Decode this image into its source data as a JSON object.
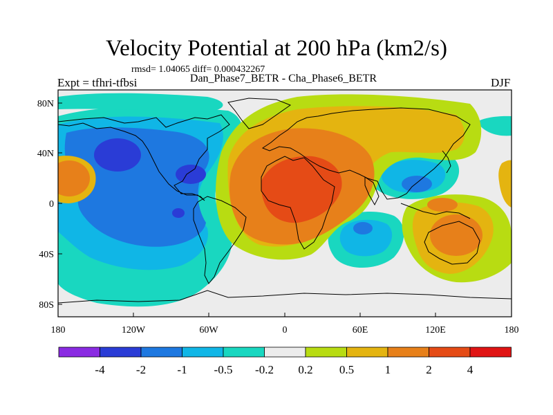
{
  "header": {
    "title": "Velocity Potential at 200 hPa (km2/s)",
    "stats": "rmsd= 1.04065 diff= 0.000432267",
    "subtitle": "Dan_Phase7_BETR - Cha_Phase6_BETR",
    "experiment": "Expt = tfhri-tfbsi",
    "season": "DJF"
  },
  "axes": {
    "lat_labels": [
      "80N",
      "40N",
      "0",
      "40S",
      "80S"
    ],
    "lon_labels": [
      "180",
      "120W",
      "60W",
      "0",
      "60E",
      "120E",
      "180"
    ]
  },
  "colorbar": {
    "levels": [
      "-4",
      "-2",
      "-1",
      "-0.5",
      "-0.2",
      "0.2",
      "0.5",
      "1",
      "2",
      "4"
    ],
    "colors": [
      "#8a2be2",
      "#2a3cd6",
      "#1e78e0",
      "#10b6e6",
      "#19d7c0",
      "#ececec",
      "#b8dc12",
      "#e4b410",
      "#e7801a",
      "#e54b16",
      "#e01414"
    ]
  },
  "map_colors": {
    "background": "#ececec",
    "neg_weak": "#19d7c0",
    "neg_mod": "#10b6e6",
    "neg_strong": "#1e78e0",
    "neg_vstrong": "#2a3cd6",
    "pos_weak": "#b8dc12",
    "pos_mod": "#e4b410",
    "pos_strong": "#e7801a",
    "pos_vstrong": "#e54b16"
  }
}
